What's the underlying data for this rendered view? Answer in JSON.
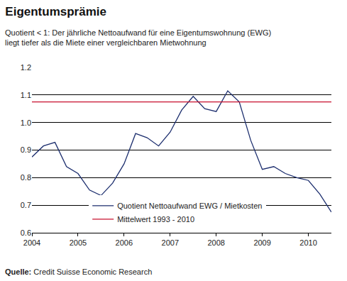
{
  "chart_data": {
    "type": "line",
    "title": "Eigentumsprämie",
    "subtitle": [
      "Quotient < 1: Der jährliche Nettoaufwand für eine Eigentumswohnung (EWG)",
      "liegt tiefer als die Miete einer vergleichbaren Mietwohnung"
    ],
    "source": "Quelle: Credit Suisse Economic Research",
    "x": [
      2004,
      2004.25,
      2004.5,
      2004.75,
      2005,
      2005.25,
      2005.5,
      2005.75,
      2006,
      2006.25,
      2006.5,
      2006.75,
      2007,
      2007.25,
      2007.5,
      2007.75,
      2008,
      2008.25,
      2008.5,
      2008.75,
      2009,
      2009.25,
      2009.5,
      2009.75,
      2010,
      2010.25,
      2010.5
    ],
    "series": [
      {
        "name": "Quotient Nettoaufwand EWG / Mietkosten",
        "color": "#1c2e6e",
        "values": [
          0.875,
          0.915,
          0.928,
          0.84,
          0.815,
          0.755,
          0.735,
          0.78,
          0.85,
          0.96,
          0.945,
          0.915,
          0.965,
          1.045,
          1.095,
          1.05,
          1.04,
          1.115,
          1.075,
          0.935,
          0.83,
          0.84,
          0.815,
          0.8,
          0.79,
          0.74,
          0.675
        ]
      },
      {
        "name": "Mittelwert 1993 - 2010",
        "color": "#c8102e",
        "values": [
          1.075,
          1.075,
          1.075,
          1.075,
          1.075,
          1.075,
          1.075,
          1.075,
          1.075,
          1.075,
          1.075,
          1.075,
          1.075,
          1.075,
          1.075,
          1.075,
          1.075,
          1.075,
          1.075,
          1.075,
          1.075,
          1.075,
          1.075,
          1.075,
          1.075,
          1.075,
          1.075
        ]
      }
    ],
    "xlim": [
      2004,
      2010.5
    ],
    "xticks": [
      2004,
      2005,
      2006,
      2007,
      2008,
      2009,
      2010
    ],
    "ylim": [
      0.6,
      1.2
    ],
    "yticks": [
      0.6,
      0.7,
      0.8,
      0.9,
      {
        "value": 1,
        "label": "1.0"
      },
      1.1,
      1.2
    ],
    "grid": true,
    "legend": "lower center"
  }
}
